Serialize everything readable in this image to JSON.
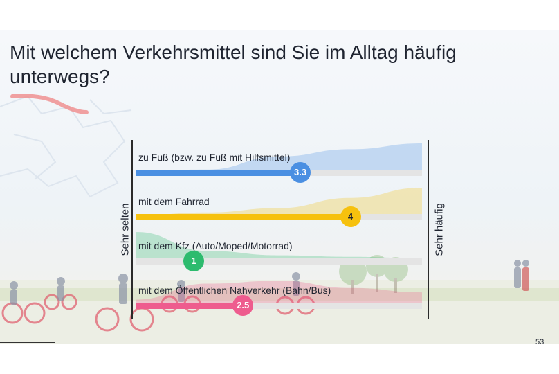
{
  "title": "Mit welchem Verkehrsmittel sind Sie im Alltag häufig unterwegs?",
  "axis": {
    "left_label": "Sehr selten",
    "right_label": "Sehr häufig"
  },
  "page_number": "53",
  "colors": {
    "blue": "#4a8fe2",
    "yellow": "#f6c10e",
    "green": "#2dbb6e",
    "pink": "#ee5c8e"
  },
  "icons": {
    "footer": "person-icon"
  },
  "chart_data": {
    "type": "bar",
    "orientation": "horizontal",
    "xlim": [
      1,
      5
    ],
    "categories": [
      "zu Fuß (bzw. zu Fuß mit Hilfsmittel)",
      "mit dem Fahrrad",
      "mit dem Kfz (Auto/Moped/Motorrad)",
      "mit dem Öffentlichen Nahverkehr (Bahn/Bus)"
    ],
    "values": [
      3.3,
      4,
      1,
      2.5
    ],
    "value_labels": [
      "3.3",
      "4",
      "1",
      "2.5"
    ],
    "series_colors": [
      "#4a8fe2",
      "#f6c10e",
      "#2dbb6e",
      "#ee5c8e"
    ],
    "distributions": [
      [
        0.05,
        0.1,
        0.55,
        0.8,
        1.0
      ],
      [
        0.05,
        0.15,
        0.3,
        0.65,
        1.0
      ],
      [
        1.0,
        0.35,
        0.2,
        0.15,
        0.1
      ],
      [
        0.2,
        0.75,
        0.85,
        0.6,
        0.45
      ]
    ]
  }
}
